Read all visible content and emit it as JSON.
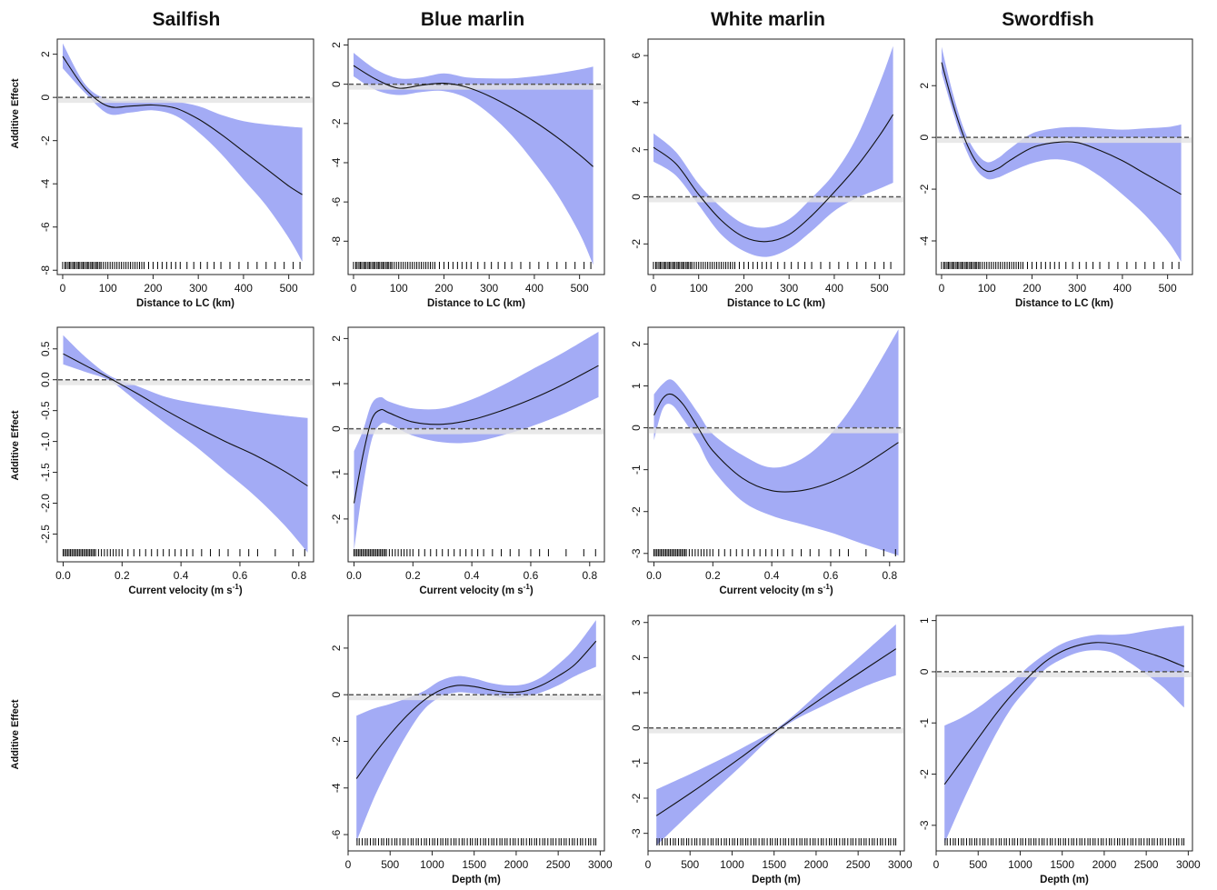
{
  "figure": {
    "columns": [
      "Sailfish",
      "Blue marlin",
      "White marlin",
      "Swordfish"
    ],
    "row_labels": [
      "Additive Effect",
      "Additive Effect",
      "Additive Effect"
    ]
  },
  "style": {
    "band_color": "#a3abf5",
    "line_color": "#111111",
    "zero_line_color": "#555555"
  },
  "chart_data": [
    {
      "type": "line",
      "panel": "distance-sailfish",
      "species": "Sailfish",
      "xlabel": "Distance to LC (km)",
      "ylabel": "Additive Effect",
      "xlim": [
        -12,
        555
      ],
      "ylim": [
        -8.2,
        2.7
      ],
      "xticks": [
        0,
        100,
        200,
        300,
        400,
        500
      ],
      "xticklabels": [
        "0",
        "100",
        "200",
        "300",
        "400",
        "500"
      ],
      "yticks": [
        2,
        0,
        -2,
        -4,
        -6,
        -8
      ],
      "yticklabels": [
        "2",
        "0",
        "-2",
        "-4",
        "-6",
        "-8"
      ],
      "x": [
        0,
        50,
        100,
        150,
        200,
        250,
        300,
        350,
        400,
        450,
        500,
        530
      ],
      "y": [
        1.9,
        0.4,
        -0.4,
        -0.4,
        -0.35,
        -0.5,
        -1.0,
        -1.7,
        -2.5,
        -3.3,
        -4.1,
        -4.5
      ],
      "lower": [
        1.35,
        0.2,
        -0.75,
        -0.7,
        -0.6,
        -0.85,
        -1.6,
        -2.6,
        -3.8,
        -5.0,
        -6.5,
        -7.6
      ],
      "upper": [
        2.5,
        0.6,
        -0.1,
        -0.15,
        -0.1,
        -0.2,
        -0.4,
        -0.8,
        -1.1,
        -1.25,
        -1.35,
        -1.4
      ]
    },
    {
      "type": "line",
      "panel": "distance-blue-marlin",
      "species": "Blue marlin",
      "xlabel": "Distance to LC (km)",
      "ylabel": "Additive Effect",
      "xlim": [
        -12,
        555
      ],
      "ylim": [
        -9.7,
        2.3
      ],
      "xticks": [
        0,
        100,
        200,
        300,
        400,
        500
      ],
      "xticklabels": [
        "0",
        "100",
        "200",
        "300",
        "400",
        "500"
      ],
      "yticks": [
        2,
        0,
        -2,
        -4,
        -6,
        -8
      ],
      "yticklabels": [
        "2",
        "0",
        "-2",
        "-4",
        "-6",
        "-8"
      ],
      "x": [
        0,
        50,
        100,
        150,
        200,
        250,
        300,
        350,
        400,
        450,
        500,
        530
      ],
      "y": [
        0.95,
        0.25,
        -0.2,
        -0.05,
        0.05,
        -0.15,
        -0.6,
        -1.2,
        -1.9,
        -2.7,
        -3.6,
        -4.2
      ],
      "lower": [
        0.4,
        -0.3,
        -0.55,
        -0.4,
        -0.35,
        -0.7,
        -1.5,
        -2.6,
        -4.0,
        -5.6,
        -7.6,
        -9.2
      ],
      "upper": [
        1.6,
        0.75,
        0.3,
        0.35,
        0.55,
        0.35,
        0.3,
        0.3,
        0.4,
        0.55,
        0.75,
        0.9
      ]
    },
    {
      "type": "line",
      "panel": "distance-white-marlin",
      "species": "White marlin",
      "xlabel": "Distance to LC (km)",
      "ylabel": "Additive Effect",
      "xlim": [
        -12,
        555
      ],
      "ylim": [
        -3.3,
        6.7
      ],
      "xticks": [
        0,
        100,
        200,
        300,
        400,
        500
      ],
      "xticklabels": [
        "0",
        "100",
        "200",
        "300",
        "400",
        "500"
      ],
      "yticks": [
        6,
        4,
        2,
        0,
        -2
      ],
      "yticklabels": [
        "6",
        "4",
        "2",
        "0",
        "-2"
      ],
      "x": [
        0,
        50,
        100,
        150,
        200,
        250,
        300,
        350,
        400,
        450,
        500,
        530
      ],
      "y": [
        2.1,
        1.4,
        0.1,
        -1.0,
        -1.7,
        -1.9,
        -1.6,
        -0.8,
        0.2,
        1.3,
        2.6,
        3.5
      ],
      "lower": [
        1.5,
        0.9,
        -0.35,
        -1.6,
        -2.3,
        -2.55,
        -2.2,
        -1.45,
        -0.6,
        -0.05,
        0.35,
        0.6
      ],
      "upper": [
        2.7,
        1.9,
        0.55,
        -0.45,
        -1.15,
        -1.3,
        -0.95,
        -0.05,
        1.0,
        2.55,
        4.8,
        6.4
      ]
    },
    {
      "type": "line",
      "panel": "distance-swordfish",
      "species": "Swordfish",
      "xlabel": "Distance to LC (km)",
      "ylabel": "Additive Effect",
      "xlim": [
        -12,
        555
      ],
      "ylim": [
        -5.3,
        3.8
      ],
      "xticks": [
        0,
        100,
        200,
        300,
        400,
        500
      ],
      "xticklabels": [
        "0",
        "100",
        "200",
        "300",
        "400",
        "500"
      ],
      "yticks": [
        2,
        0,
        -2,
        -4
      ],
      "yticklabels": [
        "2",
        "0",
        "-2",
        "-4"
      ],
      "x": [
        0,
        25,
        50,
        75,
        100,
        125,
        150,
        200,
        250,
        300,
        350,
        400,
        450,
        500,
        530
      ],
      "y": [
        2.9,
        1.3,
        0.0,
        -0.9,
        -1.3,
        -1.2,
        -0.9,
        -0.4,
        -0.2,
        -0.2,
        -0.5,
        -0.9,
        -1.4,
        -1.9,
        -2.2
      ],
      "lower": [
        2.5,
        1.0,
        -0.3,
        -1.2,
        -1.6,
        -1.55,
        -1.35,
        -1.0,
        -0.85,
        -1.0,
        -1.5,
        -2.2,
        -3.0,
        -4.0,
        -4.8
      ],
      "upper": [
        3.5,
        1.7,
        0.3,
        -0.55,
        -0.95,
        -0.8,
        -0.45,
        0.15,
        0.35,
        0.4,
        0.35,
        0.3,
        0.35,
        0.4,
        0.5
      ]
    },
    {
      "type": "line",
      "panel": "velocity-sailfish",
      "species": "Sailfish",
      "xlabel": "Current velocity (m s-1)",
      "ylabel": "Additive Effect",
      "xlim": [
        -0.02,
        0.85
      ],
      "ylim": [
        -2.95,
        0.85
      ],
      "xticks": [
        0.0,
        0.2,
        0.4,
        0.6,
        0.8
      ],
      "xticklabels": [
        "0.0",
        "0.2",
        "0.4",
        "0.6",
        "0.8"
      ],
      "yticks": [
        0.5,
        0.0,
        -0.5,
        -1.0,
        -1.5,
        -2.0,
        -2.5
      ],
      "yticklabels": [
        "0.5",
        "0.0",
        "-0.5",
        "-1.0",
        "-1.5",
        "-2.0",
        "-2.5"
      ],
      "x": [
        0.0,
        0.08,
        0.16,
        0.25,
        0.35,
        0.45,
        0.55,
        0.65,
        0.75,
        0.83
      ],
      "y": [
        0.42,
        0.22,
        0.02,
        -0.22,
        -0.5,
        -0.76,
        -1.0,
        -1.22,
        -1.48,
        -1.72
      ],
      "lower": [
        0.25,
        0.12,
        -0.02,
        -0.35,
        -0.72,
        -1.08,
        -1.48,
        -1.88,
        -2.35,
        -2.8
      ],
      "upper": [
        0.72,
        0.35,
        0.06,
        -0.1,
        -0.28,
        -0.38,
        -0.45,
        -0.52,
        -0.58,
        -0.62
      ]
    },
    {
      "type": "line",
      "panel": "velocity-blue-marlin",
      "species": "Blue marlin",
      "xlabel": "Current velocity (m s-1)",
      "ylabel": "Additive Effect",
      "xlim": [
        -0.02,
        0.85
      ],
      "ylim": [
        -2.95,
        2.25
      ],
      "xticks": [
        0.0,
        0.2,
        0.4,
        0.6,
        0.8
      ],
      "xticklabels": [
        "0.0",
        "0.2",
        "0.4",
        "0.6",
        "0.8"
      ],
      "yticks": [
        2,
        1,
        0,
        -1,
        -2
      ],
      "yticklabels": [
        "2",
        "1",
        "0",
        "-1",
        "-2"
      ],
      "x": [
        0.0,
        0.03,
        0.06,
        0.09,
        0.12,
        0.2,
        0.3,
        0.4,
        0.5,
        0.6,
        0.7,
        0.83
      ],
      "y": [
        -1.65,
        -0.6,
        0.2,
        0.42,
        0.35,
        0.15,
        0.1,
        0.2,
        0.4,
        0.65,
        0.95,
        1.4
      ],
      "lower": [
        -2.7,
        -1.3,
        -0.25,
        0.1,
        0.1,
        -0.15,
        -0.3,
        -0.3,
        -0.15,
        0.05,
        0.3,
        0.7
      ],
      "upper": [
        -0.5,
        -0.05,
        0.55,
        0.7,
        0.6,
        0.45,
        0.45,
        0.65,
        0.95,
        1.3,
        1.65,
        2.15
      ]
    },
    {
      "type": "line",
      "panel": "velocity-white-marlin",
      "species": "White marlin",
      "xlabel": "Current velocity (m s-1)",
      "ylabel": "Additive Effect",
      "xlim": [
        -0.02,
        0.85
      ],
      "ylim": [
        -3.2,
        2.4
      ],
      "xticks": [
        0.0,
        0.2,
        0.4,
        0.6,
        0.8
      ],
      "xticklabels": [
        "0.0",
        "0.2",
        "0.4",
        "0.6",
        "0.8"
      ],
      "yticks": [
        2,
        1,
        0,
        -1,
        -2,
        -3
      ],
      "yticklabels": [
        "2",
        "1",
        "0",
        "-1",
        "-2",
        "-3"
      ],
      "x": [
        0.0,
        0.03,
        0.06,
        0.1,
        0.15,
        0.2,
        0.3,
        0.4,
        0.5,
        0.6,
        0.7,
        0.83
      ],
      "y": [
        0.3,
        0.7,
        0.8,
        0.55,
        0.0,
        -0.55,
        -1.2,
        -1.5,
        -1.5,
        -1.3,
        -0.95,
        -0.35
      ],
      "lower": [
        -0.3,
        0.45,
        0.55,
        0.2,
        -0.35,
        -1.0,
        -1.75,
        -2.1,
        -2.3,
        -2.5,
        -2.75,
        -3.05
      ],
      "upper": [
        0.8,
        1.05,
        1.15,
        0.85,
        0.35,
        -0.15,
        -0.65,
        -0.95,
        -0.75,
        -0.15,
        0.8,
        2.35
      ]
    },
    {
      "type": "line",
      "panel": "depth-blue-marlin",
      "species": "Blue marlin",
      "xlabel": "Depth (m)",
      "ylabel": "Additive Effect",
      "xlim": [
        0,
        3050
      ],
      "ylim": [
        -6.7,
        3.4
      ],
      "xticks": [
        0,
        500,
        1000,
        1500,
        2000,
        2500,
        3000
      ],
      "xticklabels": [
        "0",
        "500",
        "1000",
        "1500",
        "2000",
        "2500",
        "3000"
      ],
      "yticks": [
        2,
        0,
        -2,
        -4,
        -6
      ],
      "yticklabels": [
        "2",
        "0",
        "-2",
        "-4",
        "-6"
      ],
      "x": [
        100,
        300,
        500,
        700,
        900,
        1100,
        1300,
        1500,
        1700,
        1900,
        2100,
        2300,
        2500,
        2700,
        2950
      ],
      "y": [
        -3.6,
        -2.6,
        -1.7,
        -0.9,
        -0.25,
        0.2,
        0.4,
        0.35,
        0.2,
        0.1,
        0.15,
        0.4,
        0.8,
        1.3,
        2.3
      ],
      "lower": [
        -6.3,
        -4.5,
        -3.0,
        -1.7,
        -0.65,
        -0.1,
        0.1,
        0.05,
        -0.05,
        -0.15,
        -0.1,
        0.1,
        0.4,
        0.8,
        1.2
      ],
      "upper": [
        -0.9,
        -0.6,
        -0.4,
        -0.15,
        0.15,
        0.6,
        0.8,
        0.7,
        0.5,
        0.4,
        0.45,
        0.75,
        1.3,
        2.0,
        3.2
      ]
    },
    {
      "type": "line",
      "panel": "depth-white-marlin",
      "species": "White marlin",
      "xlabel": "Depth (m)",
      "ylabel": "Additive Effect",
      "xlim": [
        0,
        3050
      ],
      "ylim": [
        -3.5,
        3.2
      ],
      "xticks": [
        0,
        500,
        1000,
        1500,
        2000,
        2500,
        3000
      ],
      "xticklabels": [
        "0",
        "500",
        "1000",
        "1500",
        "2000",
        "2500",
        "3000"
      ],
      "yticks": [
        3,
        2,
        1,
        0,
        -1,
        -2,
        -3
      ],
      "yticklabels": [
        "3",
        "2",
        "1",
        "0",
        "-1",
        "-2",
        "-3"
      ],
      "x": [
        100,
        600,
        1100,
        1600,
        2100,
        2600,
        2950
      ],
      "y": [
        -2.5,
        -1.7,
        -0.85,
        0.05,
        0.9,
        1.7,
        2.25
      ],
      "lower": [
        -3.35,
        -2.2,
        -1.1,
        0.0,
        0.65,
        1.2,
        1.5
      ],
      "upper": [
        -1.75,
        -1.2,
        -0.6,
        0.1,
        1.15,
        2.2,
        2.95
      ]
    },
    {
      "type": "line",
      "panel": "depth-swordfish",
      "species": "Swordfish",
      "xlabel": "Depth (m)",
      "ylabel": "Additive Effect",
      "xlim": [
        0,
        3050
      ],
      "ylim": [
        -3.5,
        1.1
      ],
      "xticks": [
        0,
        500,
        1000,
        1500,
        2000,
        2500,
        3000
      ],
      "xticklabels": [
        "0",
        "500",
        "1000",
        "1500",
        "2000",
        "2500",
        "3000"
      ],
      "yticks": [
        1,
        0,
        -1,
        -2,
        -3
      ],
      "yticklabels": [
        "1",
        "0",
        "-1",
        "-2",
        "-3"
      ],
      "x": [
        100,
        300,
        500,
        700,
        900,
        1100,
        1300,
        1500,
        1700,
        1900,
        2100,
        2300,
        2500,
        2700,
        2950
      ],
      "y": [
        -2.2,
        -1.75,
        -1.3,
        -0.85,
        -0.45,
        -0.1,
        0.2,
        0.4,
        0.52,
        0.57,
        0.55,
        0.48,
        0.38,
        0.27,
        0.1
      ],
      "lower": [
        -3.35,
        -2.6,
        -1.9,
        -1.25,
        -0.7,
        -0.3,
        0.05,
        0.25,
        0.38,
        0.42,
        0.37,
        0.18,
        -0.05,
        -0.3,
        -0.7
      ],
      "upper": [
        -1.05,
        -0.9,
        -0.7,
        -0.45,
        -0.2,
        0.1,
        0.35,
        0.55,
        0.66,
        0.72,
        0.72,
        0.74,
        0.8,
        0.85,
        0.9
      ]
    }
  ]
}
